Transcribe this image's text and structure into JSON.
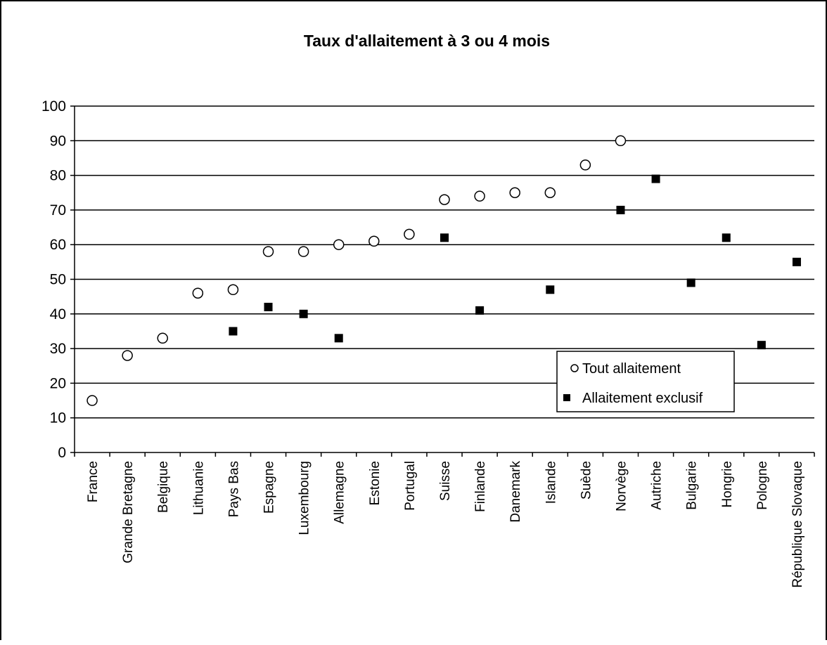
{
  "chart_data": {
    "type": "scatter",
    "title": "Taux d'allaitement à 3 ou 4 mois",
    "xlabel": "",
    "ylabel": "",
    "ylim": [
      0,
      100
    ],
    "yticks": [
      0,
      10,
      20,
      30,
      40,
      50,
      60,
      70,
      80,
      90,
      100
    ],
    "grid": true,
    "legend_position": "bottom-right",
    "categories": [
      "France",
      "Grande Bretagne",
      "Belgique",
      "Lithuanie",
      "Pays Bas",
      "Espagne",
      "Luxembourg",
      "Allemagne",
      "Estonie",
      "Portugal",
      "Suisse",
      "Finlande",
      "Danemark",
      "Islande",
      "Suède",
      "Norvège",
      "Autriche",
      "Bulgarie",
      "Hongrie",
      "Pologne",
      "République Slovaque"
    ],
    "series": [
      {
        "name": "Tout allaitement",
        "marker": "open-circle",
        "color": "#000000",
        "values": [
          15,
          28,
          33,
          46,
          47,
          58,
          58,
          60,
          61,
          63,
          73,
          74,
          75,
          75,
          83,
          90,
          null,
          null,
          null,
          null,
          null
        ]
      },
      {
        "name": "Allaitement exclusif",
        "marker": "filled-square",
        "color": "#000000",
        "values": [
          null,
          null,
          null,
          null,
          35,
          42,
          40,
          33,
          null,
          null,
          62,
          41,
          null,
          47,
          null,
          70,
          79,
          49,
          62,
          31,
          55
        ]
      }
    ]
  }
}
